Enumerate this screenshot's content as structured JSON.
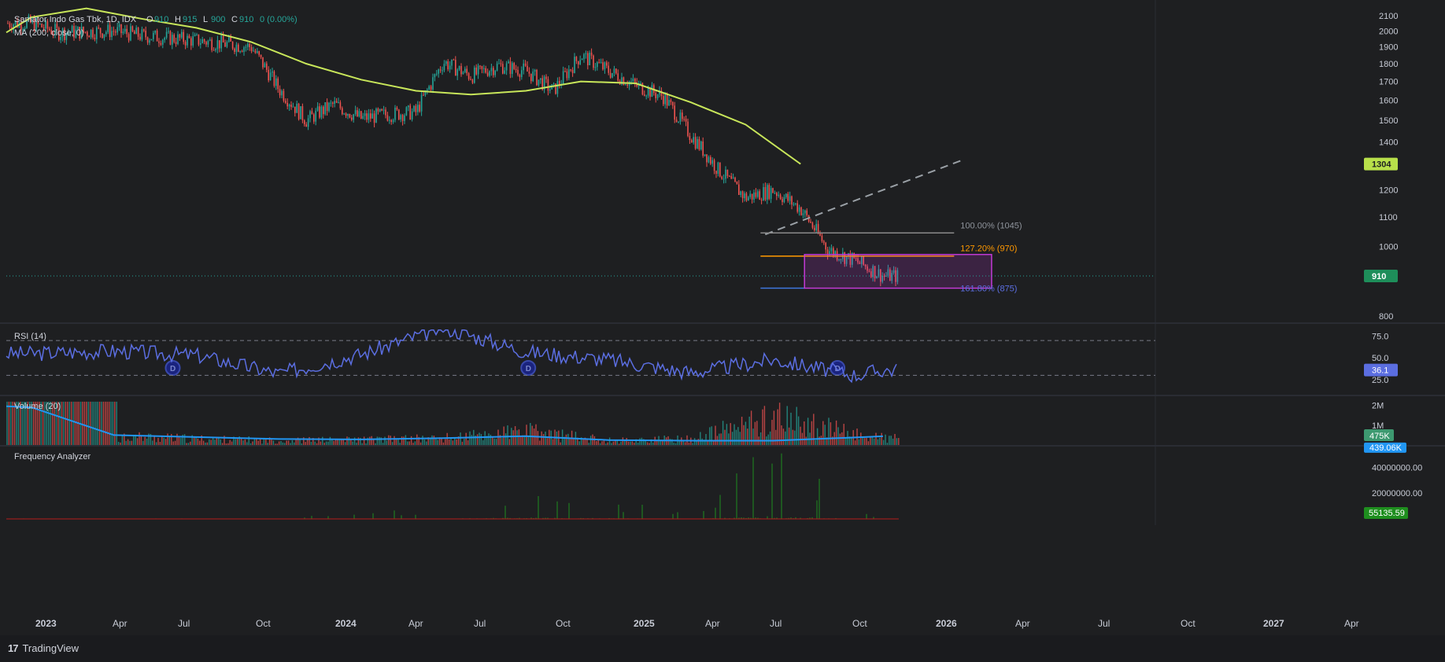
{
  "header": {
    "symbol": "Samator Indo Gas Tbk",
    "interval": "1D",
    "exchange": "IDX",
    "ohlc": {
      "o_label": "O",
      "o": "910",
      "h_label": "H",
      "h": "915",
      "l_label": "L",
      "l": "900",
      "c_label": "C",
      "c": "910",
      "change": "0 (0.00%)"
    },
    "ma_label": "MA (200, close, 0)"
  },
  "colors": {
    "background": "#1e1f21",
    "up": "#26a69a",
    "down": "#ef5350",
    "ma": "#c8e65a",
    "rsi": "#5b6ee1",
    "volume_ma": "#2196f3",
    "fib_100": "#8a8a8a",
    "fib_127": "#ff9800",
    "fib_161": "#3f78e0",
    "box": "#c33ad6",
    "freq": "#1e8e1e",
    "last_price": "#1e8e5a",
    "ma_price": "#b8e04a"
  },
  "price_axis": {
    "ticks": [
      "2100",
      "2000",
      "1900",
      "1800",
      "1700",
      "1600",
      "1500",
      "1400",
      "1200",
      "1100",
      "1000",
      "800"
    ]
  },
  "time_axis": {
    "labels": [
      {
        "label": "2023",
        "bold": true
      },
      {
        "label": "Apr",
        "bold": false
      },
      {
        "label": "Jul",
        "bold": false
      },
      {
        "label": "Oct",
        "bold": false
      },
      {
        "label": "2024",
        "bold": true
      },
      {
        "label": "Apr",
        "bold": false
      },
      {
        "label": "Jul",
        "bold": false
      },
      {
        "label": "Oct",
        "bold": false
      },
      {
        "label": "2025",
        "bold": true
      },
      {
        "label": "Apr",
        "bold": false
      },
      {
        "label": "Jul",
        "bold": false
      },
      {
        "label": "Oct",
        "bold": false
      },
      {
        "label": "2026",
        "bold": true
      },
      {
        "label": "Apr",
        "bold": false
      },
      {
        "label": "Jul",
        "bold": false
      },
      {
        "label": "Oct",
        "bold": false
      },
      {
        "label": "2027",
        "bold": true
      },
      {
        "label": "Apr",
        "bold": false
      }
    ]
  },
  "markers": {
    "last_price": "910",
    "ma_price": "1304"
  },
  "fib": {
    "l100": "100.00% (1045)",
    "l127": "127.20% (970)",
    "l161": "161.80% (875)"
  },
  "event_markers": [
    "D",
    "D",
    "D"
  ],
  "rsi": {
    "label": "RSI (14)",
    "ticks": [
      "75.0",
      "50.0",
      "25.0"
    ],
    "value": "36.1"
  },
  "volume": {
    "label": "Volume (20)",
    "ticks": [
      "2M",
      "1M"
    ],
    "value": "475K",
    "ma_value": "439.06K"
  },
  "freq": {
    "label": "Frequency Analyzer",
    "ticks": [
      "40000000.00",
      "20000000.00"
    ],
    "value": "55135.59"
  },
  "footer": {
    "brand": "TradingView",
    "logo": "17"
  },
  "chart_data": [
    {
      "type": "line",
      "title": "Samator Indo Gas Tbk, 1D, IDX",
      "series": [
        {
          "name": "Samator Indo Gas Tbk",
          "x": [
            "2023-01",
            "2023-02",
            "2023-04",
            "2023-05",
            "2023-07",
            "2023-09",
            "2023-10",
            "2023-11",
            "2023-12",
            "2024-01",
            "2024-02",
            "2024-03",
            "2024-04",
            "2024-05",
            "2024-06",
            "2024-07",
            "2024-08",
            "2024-09",
            "2024-10",
            "2024-11",
            "2024-12",
            "2025-01",
            "2025-02",
            "2025-03",
            "2025-04",
            "2025-05",
            "2025-06",
            "2025-07",
            "2025-08"
          ],
          "values": [
            2050,
            1990,
            2000,
            1970,
            1940,
            1900,
            1660,
            1500,
            1580,
            1510,
            1530,
            1540,
            1810,
            1730,
            1790,
            1760,
            1650,
            1850,
            1760,
            1680,
            1620,
            1430,
            1280,
            1170,
            1200,
            1130,
            990,
            955,
            910
          ]
        },
        {
          "name": "MA (200, close, 0)",
          "x": [
            "2023-01",
            "2023-03",
            "2023-05",
            "2023-07",
            "2023-09",
            "2023-11",
            "2024-01",
            "2024-03",
            "2024-05",
            "2024-07",
            "2024-09",
            "2024-11",
            "2025-01",
            "2025-03",
            "2025-05"
          ],
          "values": [
            2090,
            2150,
            2080,
            2020,
            1930,
            1800,
            1710,
            1650,
            1630,
            1650,
            1700,
            1690,
            1590,
            1480,
            1304
          ]
        }
      ],
      "ylim": [
        780,
        2140
      ]
    },
    {
      "type": "line",
      "title": "RSI (14)",
      "x": [
        "2023-01",
        "2023-04",
        "2023-07",
        "2023-10",
        "2024-01",
        "2024-04",
        "2024-07",
        "2024-10",
        "2025-01",
        "2025-04",
        "2025-07",
        "2025-08"
      ],
      "values": [
        55,
        58,
        53,
        32,
        54,
        85,
        57,
        48,
        33,
        48,
        30,
        36.1
      ],
      "ylim": [
        10,
        85
      ]
    },
    {
      "type": "bar",
      "title": "Volume (20)",
      "x": [
        "2023-01",
        "2023-04",
        "2023-07",
        "2023-10",
        "2024-01",
        "2024-04",
        "2024-07",
        "2024-10",
        "2025-01",
        "2025-04",
        "2025-07",
        "2025-08"
      ],
      "values": [
        2000000,
        600000,
        400000,
        300000,
        350000,
        450000,
        900000,
        300000,
        400000,
        1800000,
        700000,
        475000
      ],
      "ma_values": [
        1900000,
        500000,
        400000,
        300000,
        280000,
        350000,
        450000,
        250000,
        220000,
        220000,
        380000,
        439060
      ],
      "ylim": [
        0,
        2300000
      ]
    },
    {
      "type": "bar",
      "title": "Frequency Analyzer",
      "x": [
        "2023-01",
        "2023-04",
        "2023-07",
        "2023-10",
        "2024-01",
        "2024-04",
        "2024-07",
        "2024-10",
        "2025-01",
        "2025-04",
        "2025-07",
        "2025-08"
      ],
      "values": [
        300000,
        200000,
        300000,
        400000,
        4000000,
        6000000,
        22000000,
        12000000,
        3000000,
        46000000,
        5000000,
        55135.59
      ],
      "ylim": [
        0,
        50000000
      ]
    }
  ]
}
